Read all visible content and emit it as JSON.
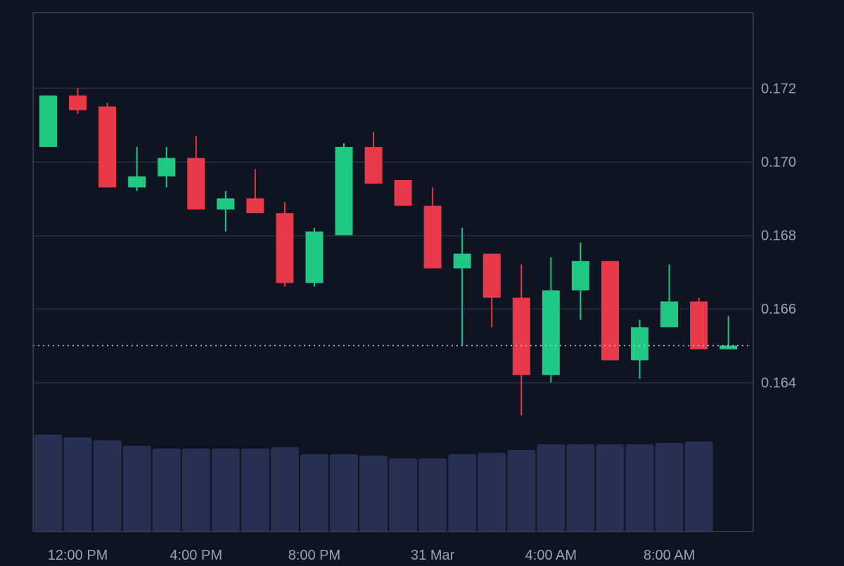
{
  "chart_data": {
    "type": "candlestick",
    "y_axis": {
      "ticks": [
        0.164,
        0.166,
        0.168,
        0.17,
        0.172
      ],
      "tick_labels": [
        "0.164",
        "0.166",
        "0.168",
        "0.170",
        "0.172"
      ],
      "range": [
        0.16285,
        0.17405
      ]
    },
    "x_axis": {
      "tick_labels": [
        "12:00 PM",
        "4:00 PM",
        "8:00 PM",
        "31 Mar",
        "4:00 AM",
        "8:00 AM"
      ],
      "tick_candle_index": [
        1,
        5,
        9,
        13,
        17,
        21
      ]
    },
    "last_price_line": 0.165,
    "grid": true,
    "candles": [
      {
        "o": 0.1704,
        "h": 0.1718,
        "l": 0.1704,
        "c": 0.1718
      },
      {
        "o": 0.1718,
        "h": 0.172,
        "l": 0.1713,
        "c": 0.1714
      },
      {
        "o": 0.1715,
        "h": 0.1716,
        "l": 0.1693,
        "c": 0.1693
      },
      {
        "o": 0.1693,
        "h": 0.1704,
        "l": 0.1692,
        "c": 0.1696
      },
      {
        "o": 0.1696,
        "h": 0.1704,
        "l": 0.1693,
        "c": 0.1701
      },
      {
        "o": 0.1701,
        "h": 0.1707,
        "l": 0.1687,
        "c": 0.1687
      },
      {
        "o": 0.1687,
        "h": 0.1692,
        "l": 0.1681,
        "c": 0.169
      },
      {
        "o": 0.169,
        "h": 0.1698,
        "l": 0.1686,
        "c": 0.1686
      },
      {
        "o": 0.1686,
        "h": 0.1689,
        "l": 0.1666,
        "c": 0.1667
      },
      {
        "o": 0.1667,
        "h": 0.1682,
        "l": 0.1666,
        "c": 0.1681
      },
      {
        "o": 0.168,
        "h": 0.1705,
        "l": 0.168,
        "c": 0.1704
      },
      {
        "o": 0.1704,
        "h": 0.1708,
        "l": 0.1694,
        "c": 0.1694
      },
      {
        "o": 0.1695,
        "h": 0.1695,
        "l": 0.1688,
        "c": 0.1688
      },
      {
        "o": 0.1688,
        "h": 0.1693,
        "l": 0.1671,
        "c": 0.1671
      },
      {
        "o": 0.1671,
        "h": 0.1682,
        "l": 0.165,
        "c": 0.1675
      },
      {
        "o": 0.1675,
        "h": 0.1675,
        "l": 0.1655,
        "c": 0.1663
      },
      {
        "o": 0.1663,
        "h": 0.1672,
        "l": 0.1631,
        "c": 0.1642
      },
      {
        "o": 0.1642,
        "h": 0.1674,
        "l": 0.164,
        "c": 0.1665
      },
      {
        "o": 0.1665,
        "h": 0.1678,
        "l": 0.1657,
        "c": 0.1673
      },
      {
        "o": 0.1673,
        "h": 0.1673,
        "l": 0.1646,
        "c": 0.1646
      },
      {
        "o": 0.1646,
        "h": 0.1657,
        "l": 0.1641,
        "c": 0.1655
      },
      {
        "o": 0.1655,
        "h": 0.1672,
        "l": 0.1655,
        "c": 0.1662
      },
      {
        "o": 0.1662,
        "h": 0.1663,
        "l": 0.1649,
        "c": 0.1649
      },
      {
        "o": 0.1649,
        "h": 0.1658,
        "l": 0.1649,
        "c": 0.165
      }
    ],
    "volume": [
      1.0,
      0.971,
      0.942,
      0.884,
      0.855,
      0.855,
      0.855,
      0.855,
      0.87,
      0.797,
      0.797,
      0.783,
      0.754,
      0.754,
      0.797,
      0.812,
      0.841,
      0.899,
      0.899,
      0.899,
      0.899,
      0.913,
      0.928
    ],
    "colors": {
      "background": "#0e1422",
      "grid": "#2a3142",
      "border": "#3a4152",
      "up": "#1fc883",
      "down": "#e8394a",
      "volume": "#273050",
      "axis_text": "#9aa2b1",
      "price_line": "#c7ccd6"
    }
  }
}
